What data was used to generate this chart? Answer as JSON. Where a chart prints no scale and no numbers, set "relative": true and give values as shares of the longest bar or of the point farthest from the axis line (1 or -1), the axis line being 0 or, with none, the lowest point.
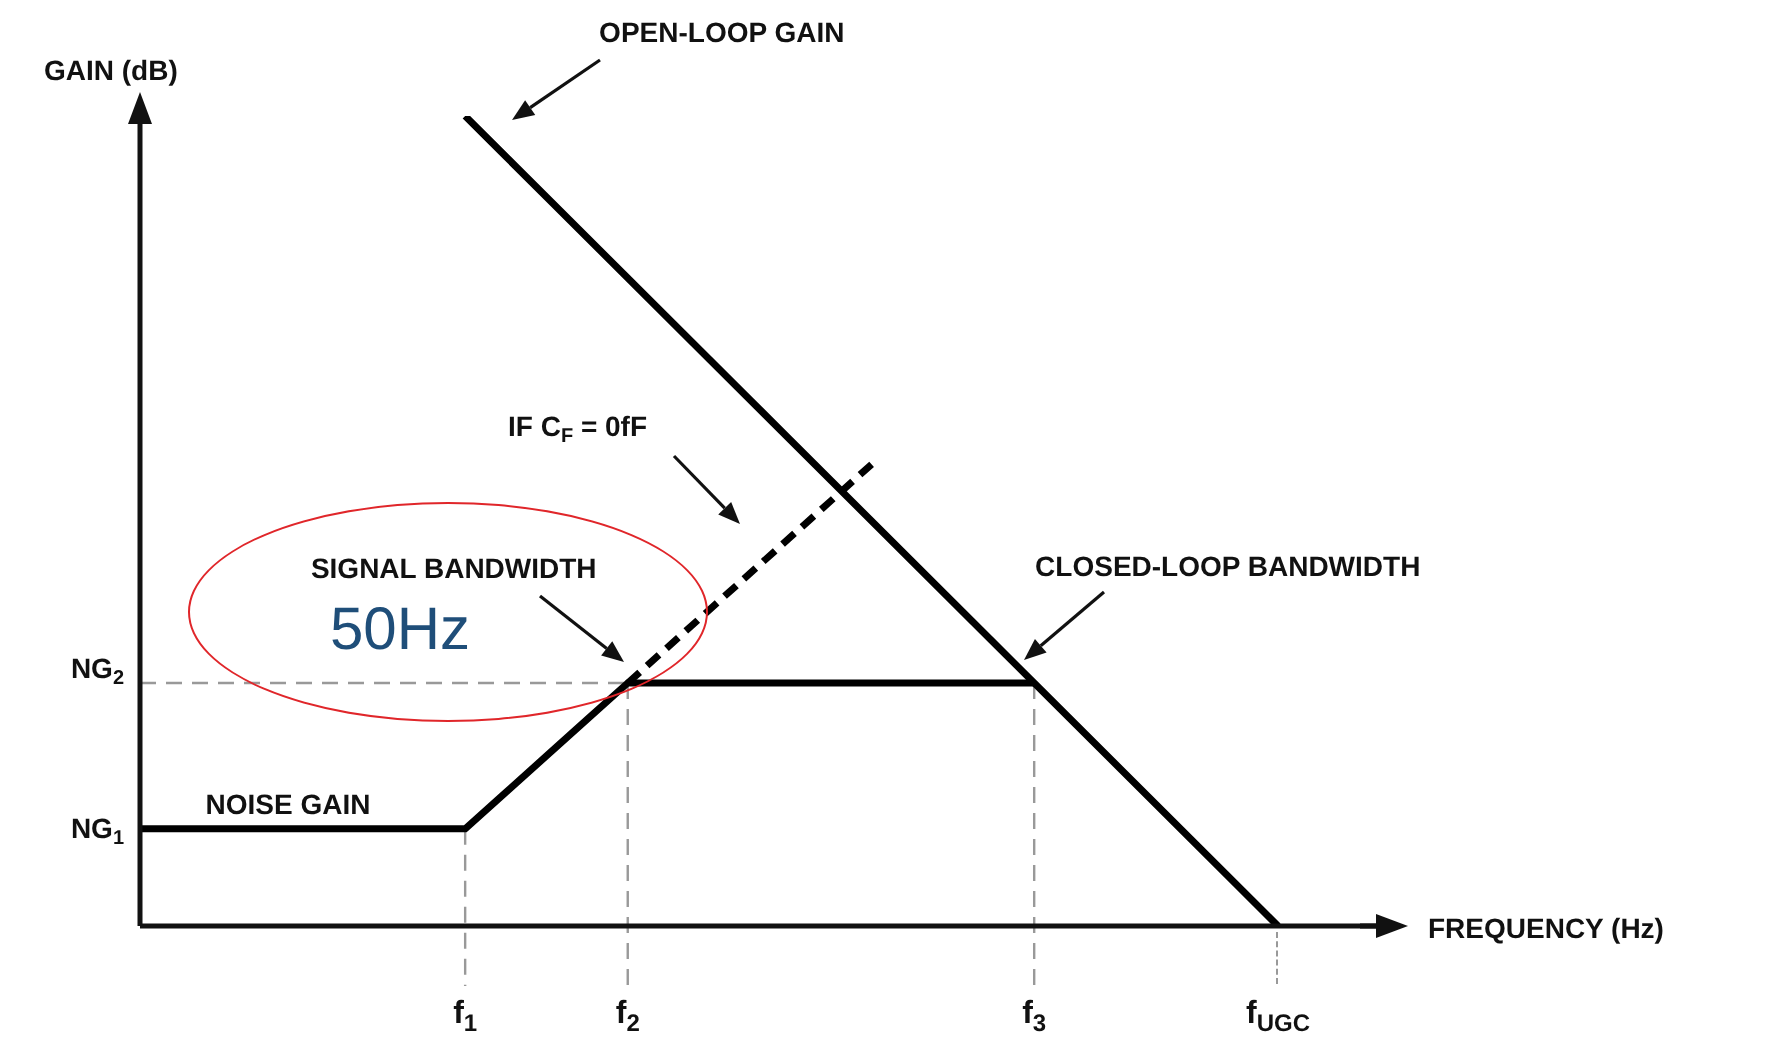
{
  "chart_data": {
    "type": "line",
    "relative": true,
    "ylabel": "GAIN (dB)",
    "xlabel": "FREQUENCY (Hz)",
    "legend": false,
    "marker": "none",
    "line_style": "solid",
    "categories": [
      null,
      null,
      null,
      null,
      null,
      null,
      null,
      null,
      "f$_{1}$",
      null,
      null,
      null,
      "f$_{2}$",
      null,
      null,
      null,
      null,
      null,
      null,
      null,
      null,
      null,
      "f$_{3}$",
      null,
      null,
      null,
      null,
      null,
      "f$_{UGC}$",
      null,
      null,
      null
    ],
    "series": [
      {
        "color": "#000000",
        "values": [
          0.12,
          0.12,
          0.12,
          0.12,
          0.12,
          0.12,
          0.12,
          0.12,
          0.12,
          0.165,
          0.21,
          0.255,
          0.3,
          0.3,
          0.3,
          0.3,
          0.3,
          0.3,
          0.3,
          0.3,
          0.3,
          0.3,
          0.3,
          null,
          null,
          null,
          null,
          null,
          null,
          null,
          null,
          null
        ]
      },
      {
        "color": "#000000",
        "values": [
          null,
          null,
          null,
          null,
          null,
          null,
          null,
          null,
          1,
          0.95,
          0.9,
          0.85,
          0.8,
          0.75,
          0.7,
          0.65,
          0.6,
          0.55,
          0.5,
          0.45,
          0.4,
          0.35,
          0.3,
          0.25,
          0.2,
          0.15,
          0.1,
          0.05,
          0,
          null,
          null,
          null
        ]
      },
      {
        "color": "#000000",
        "line_style": "dashed",
        "values": [
          null,
          null,
          null,
          null,
          null,
          null,
          null,
          null,
          null,
          null,
          null,
          null,
          0.3,
          0.345,
          0.39,
          0.435,
          0.48,
          0.525,
          0.57,
          null,
          null,
          null,
          null,
          null,
          null,
          null,
          null,
          null,
          null,
          null,
          null,
          null
        ]
      }
    ],
    "ref_lines": [
      {
        "axis": "y",
        "value": 0.3,
        "color": "#999999",
        "line_style": "dashed"
      },
      {
        "axis": "x",
        "value": "f$_{1}$",
        "color": "#999999",
        "line_style": "dashed"
      },
      {
        "axis": "x",
        "value": "f$_{2}$",
        "color": "#999999",
        "line_style": "dashed"
      },
      {
        "axis": "x",
        "value": "f$_{3}$",
        "color": "#999999",
        "line_style": "dashed"
      }
    ],
    "annotations": [
      "OPEN-LOOP GAIN",
      "IF C$_{F}$ = 0fF",
      "SIGNAL BANDWIDTH",
      "50Hz",
      "CLOSED-LOOP BANDWIDTH",
      "NOISE GAIN",
      "NG$_{1}$",
      "NG$_{2}$"
    ]
  }
}
